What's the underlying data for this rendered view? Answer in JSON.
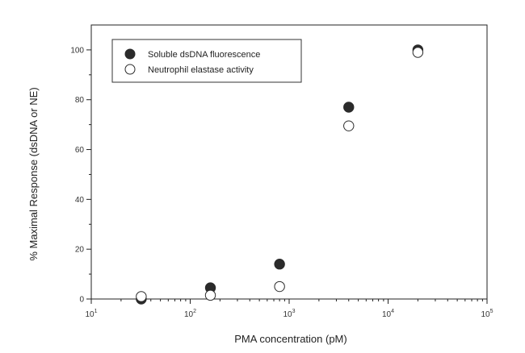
{
  "chart_data": {
    "type": "scatter",
    "title": "",
    "xlabel": "PMA concentration (pM)",
    "ylabel": "% Maximal Response (dsDNA or NE)",
    "xscale": "log",
    "xlim": [
      10,
      100000
    ],
    "ylim": [
      0,
      110
    ],
    "x_ticks": [
      {
        "value": 10,
        "base": "10",
        "exp": "1"
      },
      {
        "value": 100,
        "base": "10",
        "exp": "2"
      },
      {
        "value": 1000,
        "base": "10",
        "exp": "3"
      },
      {
        "value": 10000,
        "base": "10",
        "exp": "4"
      },
      {
        "value": 100000,
        "base": "10",
        "exp": "5"
      }
    ],
    "y_ticks": [
      0,
      20,
      40,
      60,
      80,
      100
    ],
    "grid": false,
    "legend": {
      "position": "top-left",
      "entries": [
        {
          "label": "Soluble dsDNA fluorescence",
          "marker": "filled-circle"
        },
        {
          "label": "Neutrophil elastase activity",
          "marker": "open-circle"
        }
      ]
    },
    "series": [
      {
        "name": "Soluble dsDNA fluorescence",
        "marker": "filled-circle",
        "color": "#2b2b2b",
        "x": [
          32,
          160,
          800,
          4000,
          20000
        ],
        "y": [
          0,
          4.5,
          14,
          77,
          100
        ]
      },
      {
        "name": "Neutrophil elastase activity",
        "marker": "open-circle",
        "color": "#ffffff",
        "x": [
          32,
          160,
          800,
          4000,
          20000
        ],
        "y": [
          1,
          1.5,
          5,
          69.5,
          99
        ]
      }
    ]
  }
}
